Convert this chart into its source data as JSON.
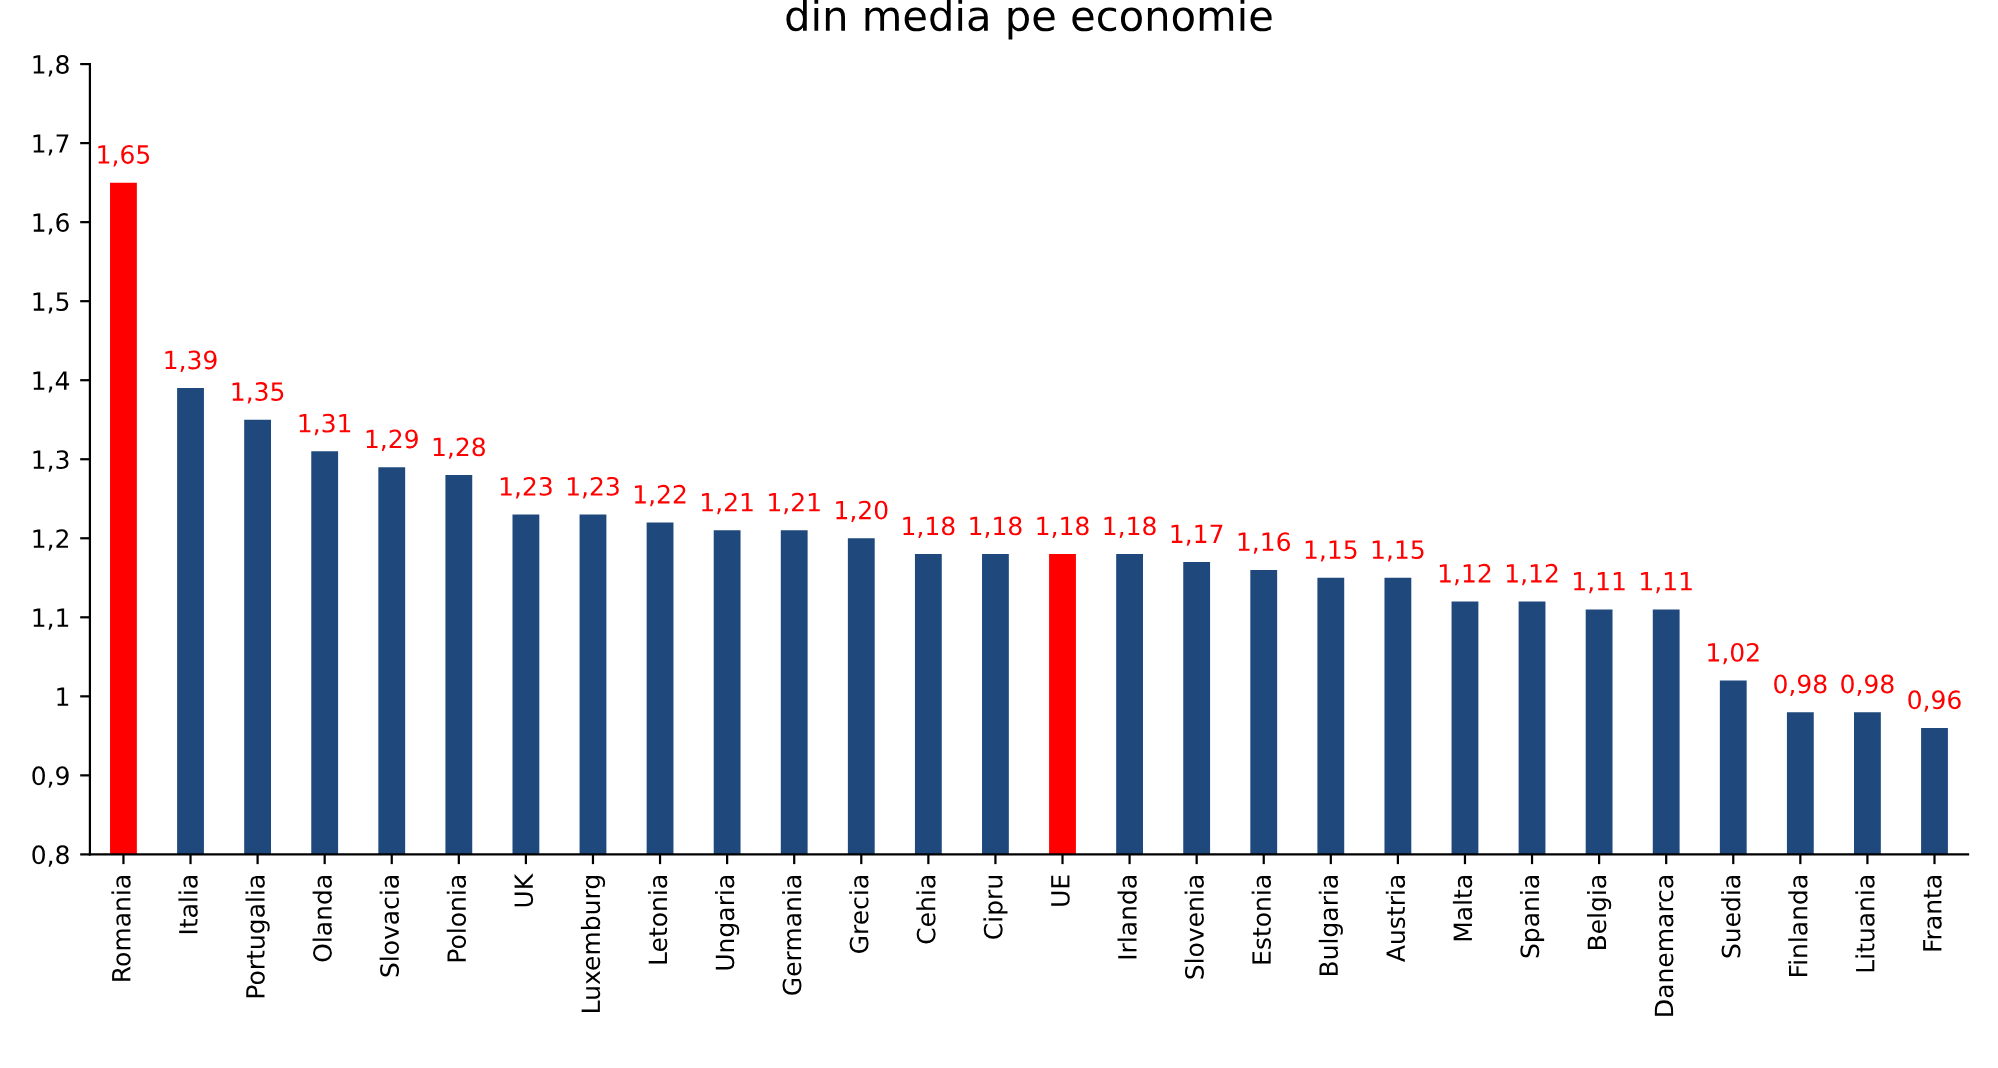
{
  "chart_data": {
    "type": "bar",
    "title": "din media pe economie",
    "categories": [
      "Romania",
      "Italia",
      "Portugalia",
      "Olanda",
      "Slovacia",
      "Polonia",
      "UK",
      "Luxemburg",
      "Letonia",
      "Ungaria",
      "Germania",
      "Grecia",
      "Cehia",
      "Cipru",
      "UE",
      "Irlanda",
      "Slovenia",
      "Estonia",
      "Bulgaria",
      "Austria",
      "Malta",
      "Spania",
      "Belgia",
      "Danemarca",
      "Suedia",
      "Finlanda",
      "Lituania",
      "Franta"
    ],
    "values": [
      1.65,
      1.39,
      1.35,
      1.31,
      1.29,
      1.28,
      1.23,
      1.23,
      1.22,
      1.21,
      1.21,
      1.2,
      1.18,
      1.18,
      1.18,
      1.18,
      1.17,
      1.16,
      1.15,
      1.15,
      1.12,
      1.12,
      1.11,
      1.11,
      1.02,
      0.98,
      0.98,
      0.96
    ],
    "value_labels": [
      "1,65",
      "1,39",
      "1,35",
      "1,31",
      "1,29",
      "1,28",
      "1,23",
      "1,23",
      "1,22",
      "1,21",
      "1,21",
      "1,20",
      "1,18",
      "1,18",
      "1,18",
      "1,18",
      "1,17",
      "1,16",
      "1,15",
      "1,15",
      "1,12",
      "1,12",
      "1,11",
      "1,11",
      "1,02",
      "0,98",
      "0,98",
      "0,96"
    ],
    "colors": [
      "#ff0000",
      "#1f497d",
      "#1f497d",
      "#1f497d",
      "#1f497d",
      "#1f497d",
      "#1f497d",
      "#1f497d",
      "#1f497d",
      "#1f497d",
      "#1f497d",
      "#1f497d",
      "#1f497d",
      "#1f497d",
      "#ff0000",
      "#1f497d",
      "#1f497d",
      "#1f497d",
      "#1f497d",
      "#1f497d",
      "#1f497d",
      "#1f497d",
      "#1f497d",
      "#1f497d",
      "#1f497d",
      "#1f497d",
      "#1f497d",
      "#1f497d"
    ],
    "ylim": [
      0.8,
      1.8
    ],
    "yticks": [
      {
        "value": 0.8,
        "label": "0,8"
      },
      {
        "value": 0.9,
        "label": "0,9"
      },
      {
        "value": 1,
        "label": "1"
      },
      {
        "value": 1.1,
        "label": "1,1"
      },
      {
        "value": 1.2,
        "label": "1,2"
      },
      {
        "value": 1.3,
        "label": "1,3"
      },
      {
        "value": 1.4,
        "label": "1,4"
      },
      {
        "value": 1.5,
        "label": "1,5"
      },
      {
        "value": 1.6,
        "label": "1,6"
      },
      {
        "value": 1.7,
        "label": "1,7"
      },
      {
        "value": 1.8,
        "label": "1,8"
      }
    ],
    "grid": false,
    "legend": false
  }
}
